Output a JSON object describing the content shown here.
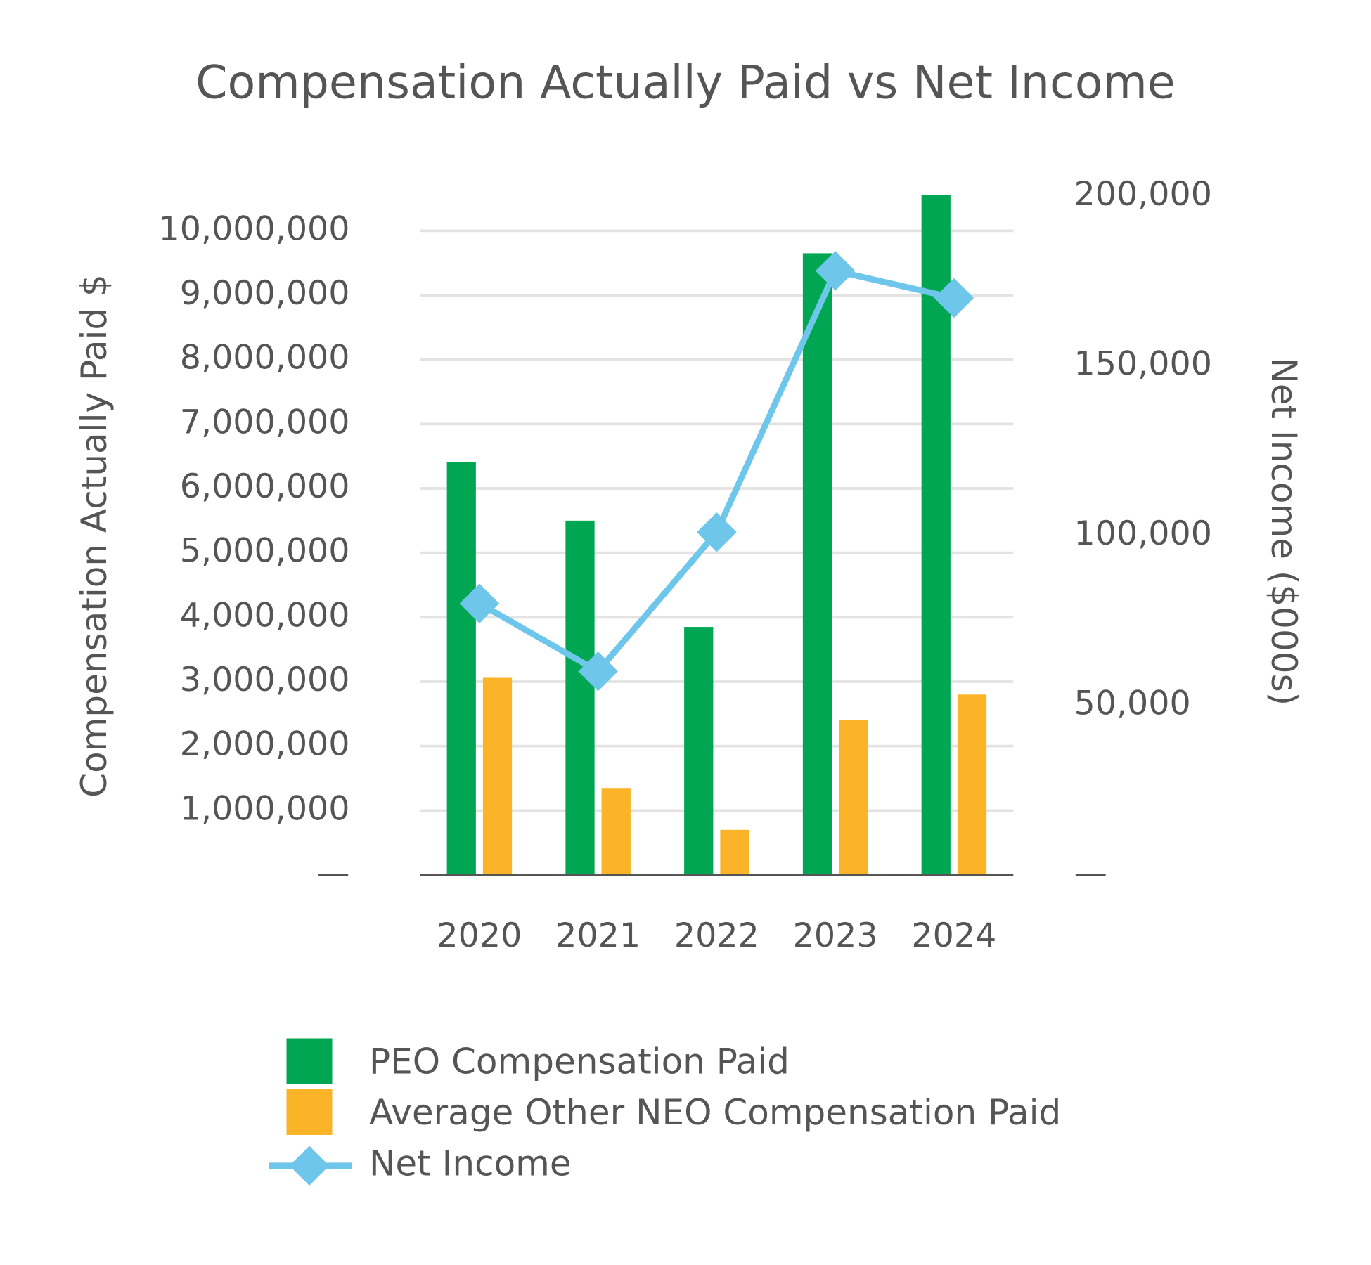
{
  "chart_data": {
    "type": "bar",
    "title": "Compensation Actually Paid vs Net Income",
    "y_label": "Compensation Actually Paid $",
    "y2_label": "Net Income ($000s)",
    "categories": [
      "2020",
      "2021",
      "2022",
      "2023",
      "2024"
    ],
    "series": [
      {
        "name": "PEO Compensation Paid",
        "type": "bar",
        "color": "#00a651",
        "values": [
          6410000,
          5500000,
          3850000,
          9650000,
          10560000
        ]
      },
      {
        "name": "Average Other NEO Compensation Paid",
        "type": "bar",
        "color": "#fbb427",
        "values": [
          3060000,
          1350000,
          700000,
          2400000,
          2800000
        ]
      },
      {
        "name": "Net Income",
        "type": "line",
        "axis": "y2",
        "color": "#6ec6ea",
        "values": [
          80000,
          60000,
          101000,
          178000,
          170000
        ]
      }
    ],
    "ylim": [
      0,
      10800000
    ],
    "yticks": [
      {
        "value": 0,
        "label": "—"
      },
      {
        "value": 1000000,
        "label": "1,000,000"
      },
      {
        "value": 2000000,
        "label": "2,000,000"
      },
      {
        "value": 3000000,
        "label": "3,000,000"
      },
      {
        "value": 4000000,
        "label": "4,000,000"
      },
      {
        "value": 5000000,
        "label": "5,000,000"
      },
      {
        "value": 6000000,
        "label": "6,000,000"
      },
      {
        "value": 7000000,
        "label": "7,000,000"
      },
      {
        "value": 8000000,
        "label": "8,000,000"
      },
      {
        "value": 9000000,
        "label": "9,000,000"
      },
      {
        "value": 10000000,
        "label": "10,000,000"
      }
    ],
    "y2lim": [
      0,
      205000
    ],
    "y2ticks": [
      {
        "value": 0,
        "label": "—"
      },
      {
        "value": 50000,
        "label": "50,000"
      },
      {
        "value": 100000,
        "label": "100,000"
      },
      {
        "value": 150000,
        "label": "150,000"
      },
      {
        "value": 200000,
        "label": "200,000"
      }
    ],
    "grid": true,
    "legend": "bottom"
  }
}
